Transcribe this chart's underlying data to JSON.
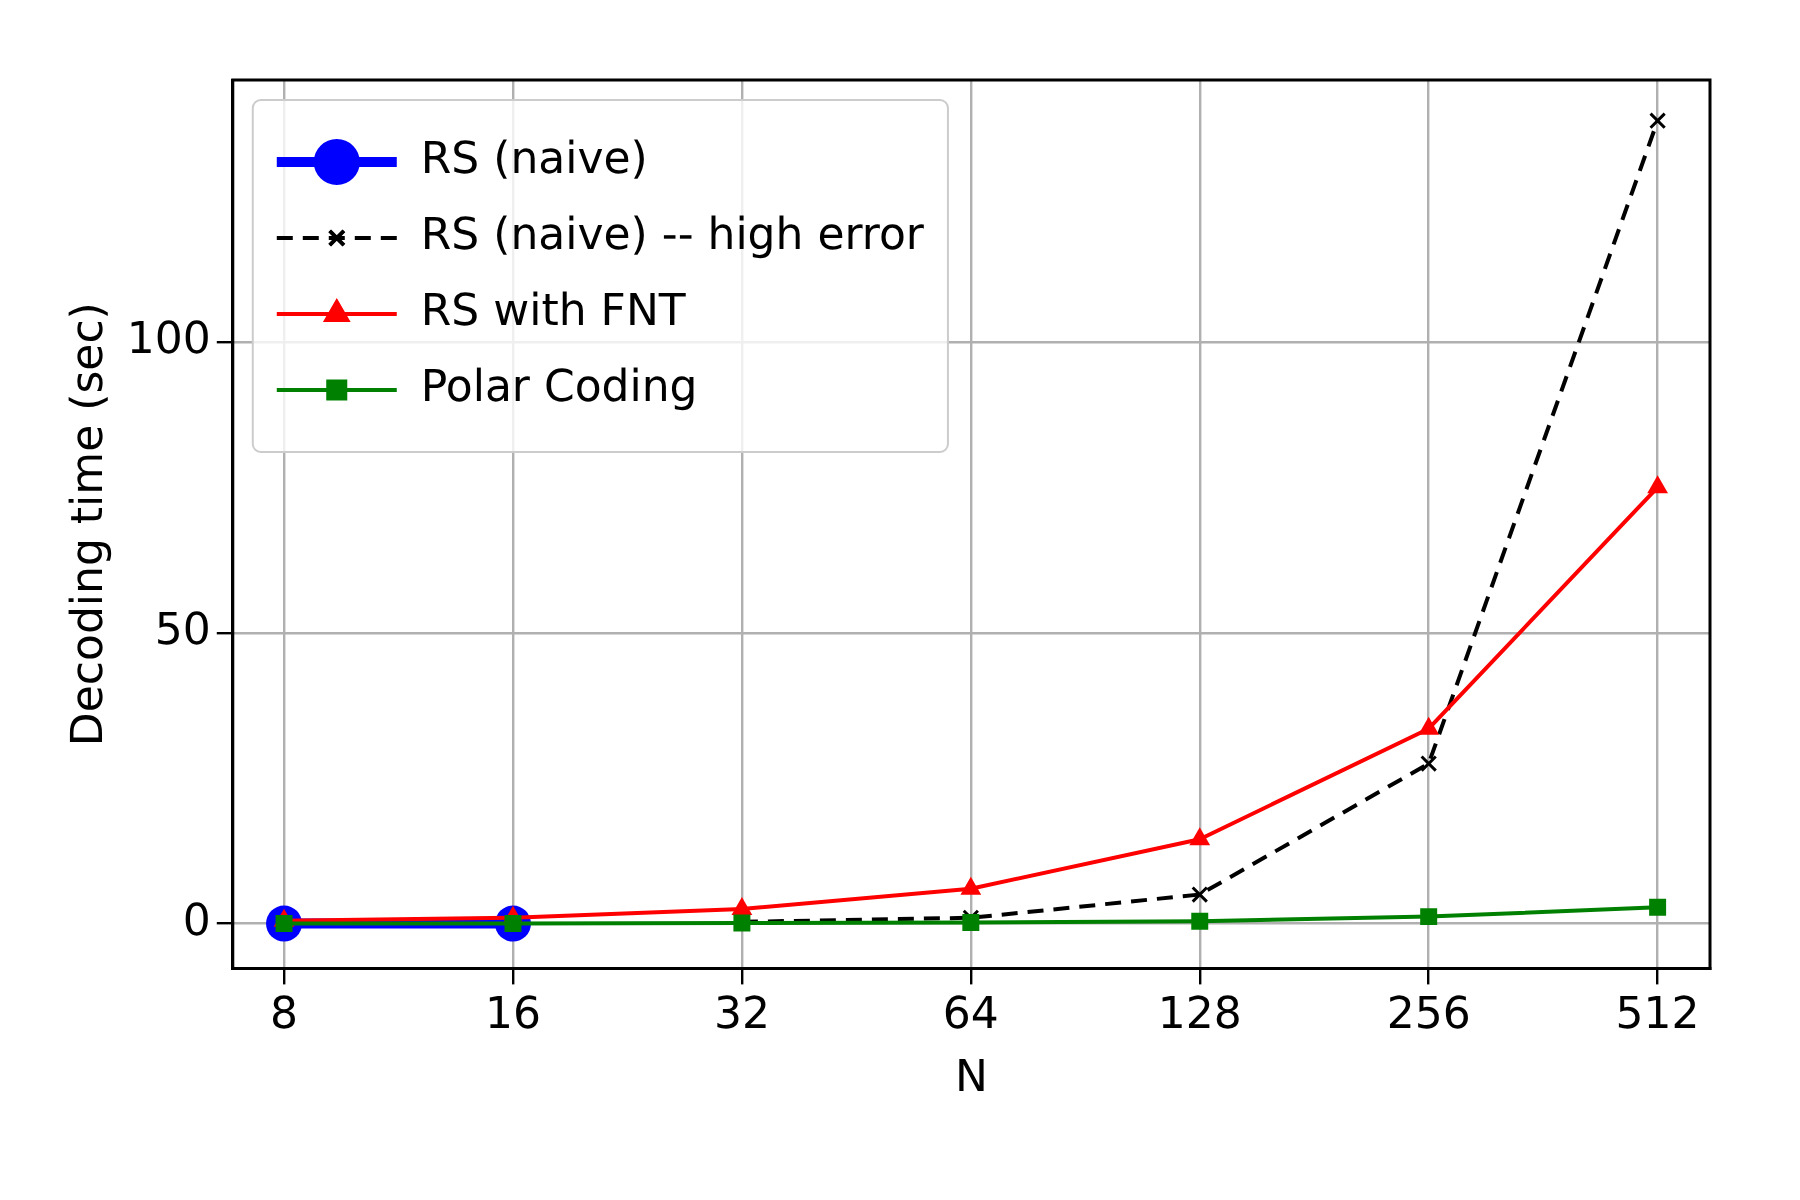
{
  "chart_data": {
    "type": "line",
    "xlabel": "N",
    "ylabel": "Decoding time (sec)",
    "x": [
      8,
      16,
      32,
      64,
      128,
      256,
      512
    ],
    "log": "x",
    "xlim": [
      6.85,
      600
    ],
    "xticks": [
      8,
      16,
      32,
      64,
      128,
      256,
      512
    ],
    "ylim": [
      -7.7,
      145
    ],
    "yticks": [
      0,
      50,
      100
    ],
    "grid": true,
    "legend": "top left",
    "series": [
      {
        "name": "RS (naive)",
        "color": "#0000ff",
        "marker": "circle",
        "line_style": "solid",
        "values": [
          0,
          0,
          null,
          null,
          null,
          null,
          null
        ]
      },
      {
        "name": "RS (naive) -- high error",
        "color": "#000000",
        "marker": "cross",
        "line_style": "dashed",
        "values": [
          null,
          null,
          0.3,
          1,
          5,
          27.5,
          138
        ]
      },
      {
        "name": "RS with FNT",
        "color": "#ff0000",
        "marker": "triangle",
        "line_style": "solid",
        "values": [
          0.5,
          1,
          2.5,
          6,
          14.5,
          33.5,
          75
        ]
      },
      {
        "name": "Polar Coding",
        "color": "#008000",
        "marker": "square",
        "line_style": "solid",
        "values": [
          0,
          0,
          0.1,
          0.2,
          0.4,
          1.2,
          2.8
        ]
      }
    ]
  }
}
